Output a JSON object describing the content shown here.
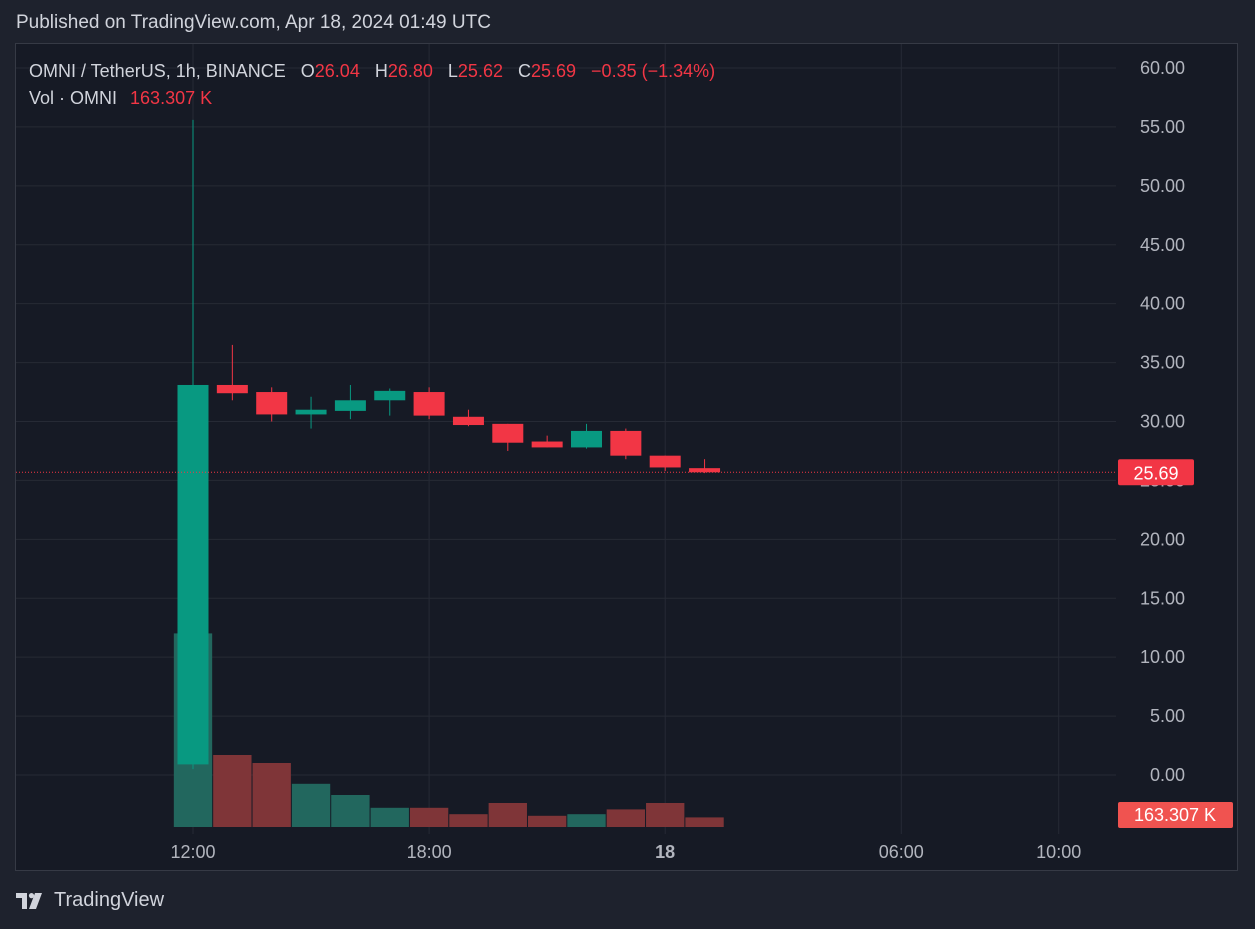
{
  "header": {
    "published": "Published on TradingView.com, Apr 18, 2024 01:49 UTC"
  },
  "legend": {
    "symbol": "OMNI / TetherUS, 1h, BINANCE",
    "o_label": "O",
    "o_value": "26.04",
    "h_label": "H",
    "h_value": "26.80",
    "l_label": "L",
    "l_value": "25.62",
    "c_label": "C",
    "c_value": "25.69",
    "change": "−0.35 (−1.34%)",
    "vol_label": "Vol · OMNI",
    "vol_value": "163.307 K"
  },
  "footer": {
    "brand": "TradingView",
    "logo_icon": "tradingview-logo-icon"
  },
  "colors": {
    "up": "#089981",
    "down": "#f23645",
    "vol_up": "#22675e",
    "vol_down": "#7f3538",
    "price_tag": "#f23645",
    "vol_tag": "#f05350",
    "background": "#161a25",
    "grid": "#262a35",
    "axis_text": "#b2b5be"
  },
  "chart_data": {
    "type": "candlestick",
    "interval": "1h",
    "y_axis": {
      "side": "right",
      "min": 0,
      "max": 60,
      "ticks": [
        "60.00",
        "55.00",
        "50.00",
        "45.00",
        "40.00",
        "35.00",
        "30.00",
        "25.00",
        "20.00",
        "15.00",
        "10.00",
        "5.00",
        "0.00"
      ]
    },
    "x_ticks": [
      {
        "label": "12:00",
        "bar": 0,
        "bold": false
      },
      {
        "label": "18:00",
        "bar": 6,
        "bold": false
      },
      {
        "label": "18",
        "bar": 12,
        "bold": true
      },
      {
        "label": "06:00",
        "bar": 18,
        "bold": false
      },
      {
        "label": "10:00",
        "bar": 22,
        "bold": false
      }
    ],
    "candles": [
      {
        "o": 0.9,
        "h": 55.6,
        "l": 0.5,
        "c": 33.1,
        "v": 12.1
      },
      {
        "o": 33.1,
        "h": 36.5,
        "l": 31.8,
        "c": 32.4,
        "v": 4.5
      },
      {
        "o": 32.5,
        "h": 32.9,
        "l": 30.0,
        "c": 30.6,
        "v": 4.0
      },
      {
        "o": 30.6,
        "h": 32.1,
        "l": 29.4,
        "c": 31.0,
        "v": 2.7
      },
      {
        "o": 30.9,
        "h": 33.1,
        "l": 30.2,
        "c": 31.8,
        "v": 2.0
      },
      {
        "o": 31.8,
        "h": 32.8,
        "l": 30.5,
        "c": 32.6,
        "v": 1.2
      },
      {
        "o": 32.5,
        "h": 32.9,
        "l": 30.2,
        "c": 30.5,
        "v": 1.2
      },
      {
        "o": 30.4,
        "h": 31.0,
        "l": 29.6,
        "c": 29.7,
        "v": 0.8
      },
      {
        "o": 29.8,
        "h": 29.8,
        "l": 27.5,
        "c": 28.2,
        "v": 1.5
      },
      {
        "o": 28.3,
        "h": 28.8,
        "l": 27.8,
        "c": 27.8,
        "v": 0.7
      },
      {
        "o": 27.8,
        "h": 29.8,
        "l": 27.7,
        "c": 29.2,
        "v": 0.8
      },
      {
        "o": 29.2,
        "h": 29.4,
        "l": 26.8,
        "c": 27.1,
        "v": 1.1
      },
      {
        "o": 27.1,
        "h": 27.1,
        "l": 25.8,
        "c": 26.1,
        "v": 1.5
      },
      {
        "o": 26.04,
        "h": 26.8,
        "l": 25.62,
        "c": 25.69,
        "v": 0.6
      }
    ],
    "last_price": 25.69,
    "last_price_label": "25.69",
    "last_volume_label": "163.307 K"
  }
}
